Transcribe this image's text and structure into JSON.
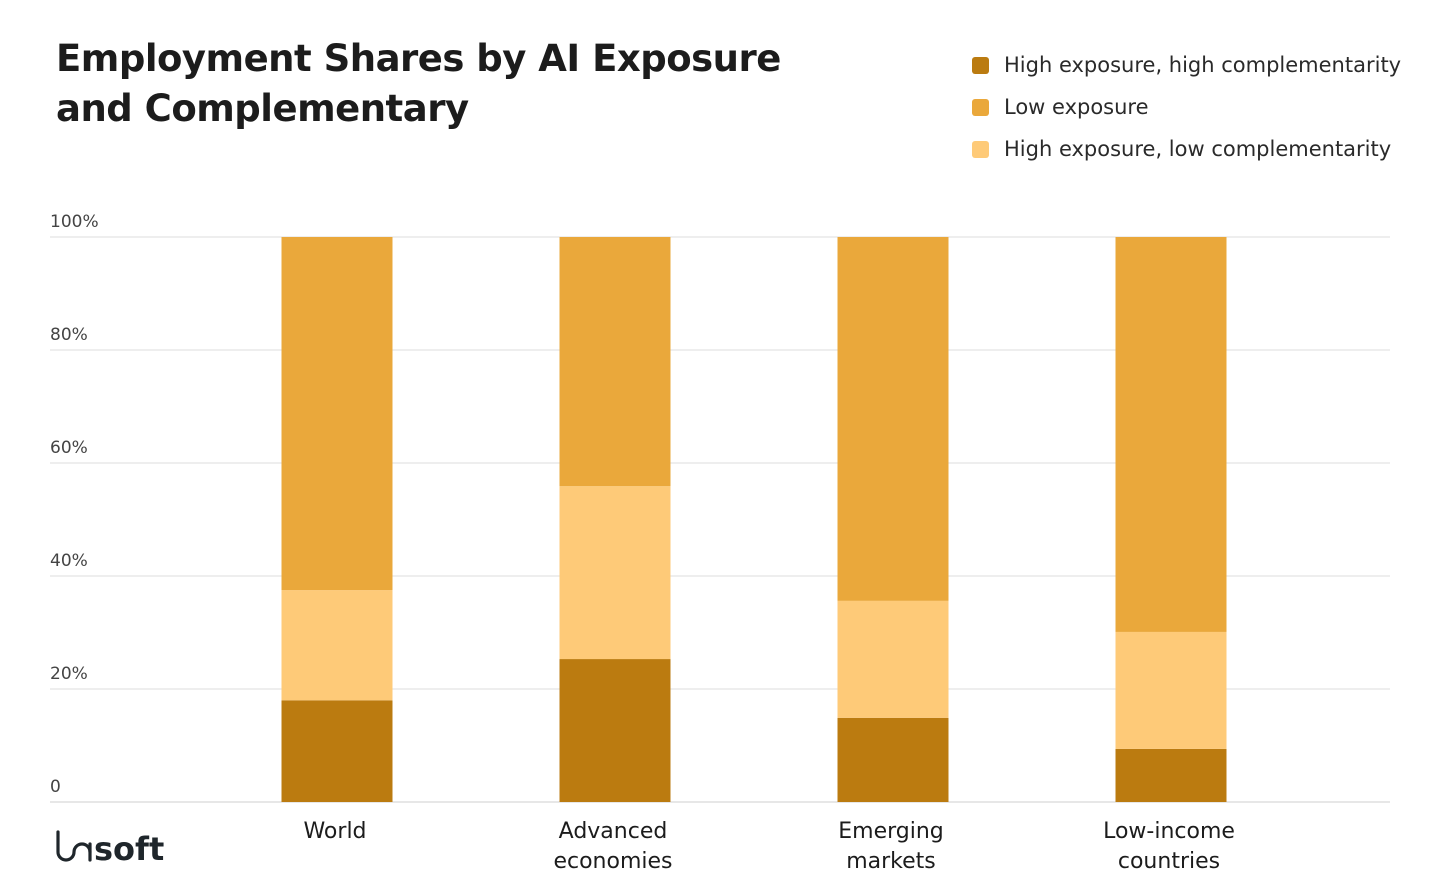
{
  "chart_data": {
    "type": "bar",
    "stacked": true,
    "title": "Employment Shares by AI Exposure and Complementary",
    "categories": [
      [
        "World"
      ],
      [
        "Advanced",
        "economies"
      ],
      [
        "Emerging",
        "markets"
      ],
      [
        "Low-income",
        "countries"
      ]
    ],
    "series": [
      {
        "name": "High exposure, high complementarity",
        "color": "#BB7B10",
        "values": [
          18.0,
          25.3,
          14.9,
          9.4
        ]
      },
      {
        "name": "High  exposure, low complementarity",
        "color": "#FECA78",
        "values": [
          19.5,
          30.6,
          20.7,
          20.7
        ]
      },
      {
        "name": "Low exposure",
        "color": "#EAA83B",
        "values": [
          62.5,
          44.1,
          64.4,
          69.9
        ]
      }
    ],
    "legend_order": [
      0,
      2,
      1
    ],
    "ylim": [
      0,
      100
    ],
    "yticks": [
      0,
      20,
      40,
      60,
      80,
      100
    ],
    "ytick_labels": [
      "0",
      "20%",
      "40%",
      "60%",
      "80%",
      "100%"
    ],
    "grid": true,
    "legend_position": "top-right",
    "xlabel": "",
    "ylabel": ""
  },
  "logo": "lasoft"
}
